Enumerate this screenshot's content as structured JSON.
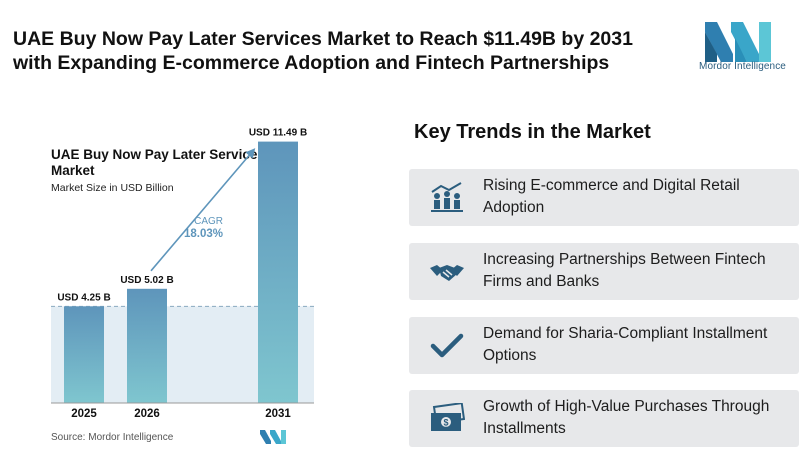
{
  "header": {
    "title": "UAE Buy Now Pay Later Services Market to Reach $11.49B by 2031 with Expanding E-commerce Adoption and Fintech Partnerships",
    "logo_text": "Mordor Intelligence"
  },
  "chart_data": {
    "type": "bar",
    "title": "UAE Buy Now Pay Later Services Market",
    "subtitle": "Market Size in USD Billion",
    "categories": [
      "2025",
      "2026",
      "2031"
    ],
    "values": [
      4.25,
      5.02,
      11.49
    ],
    "data_labels": [
      "USD 4.25 B",
      "USD 5.02 B",
      "USD 11.49 B"
    ],
    "cagr_label": "CAGR",
    "cagr_value": "18.03%",
    "ylim": [
      0,
      12
    ],
    "grid": false,
    "bar_color_top": "#5e95bb",
    "bar_color_bottom": "#7fc6cf",
    "reference_line_value": 4.25
  },
  "source": "Source:  Mordor Intelligence",
  "trends": {
    "title": "Key Trends in the Market",
    "items": [
      {
        "text": "Rising E-commerce and Digital Retail Adoption",
        "icon": "growth-people-icon"
      },
      {
        "text": "Increasing Partnerships Between Fintech Firms and Banks",
        "icon": "handshake-icon"
      },
      {
        "text": "Demand for Sharia-Compliant Installment Options",
        "icon": "checkmark-icon"
      },
      {
        "text": "Growth of High-Value Purchases Through Installments",
        "icon": "banknotes-icon"
      }
    ]
  },
  "colors": {
    "accent": "#2b5d7e",
    "panel": "#e7e8ea"
  }
}
